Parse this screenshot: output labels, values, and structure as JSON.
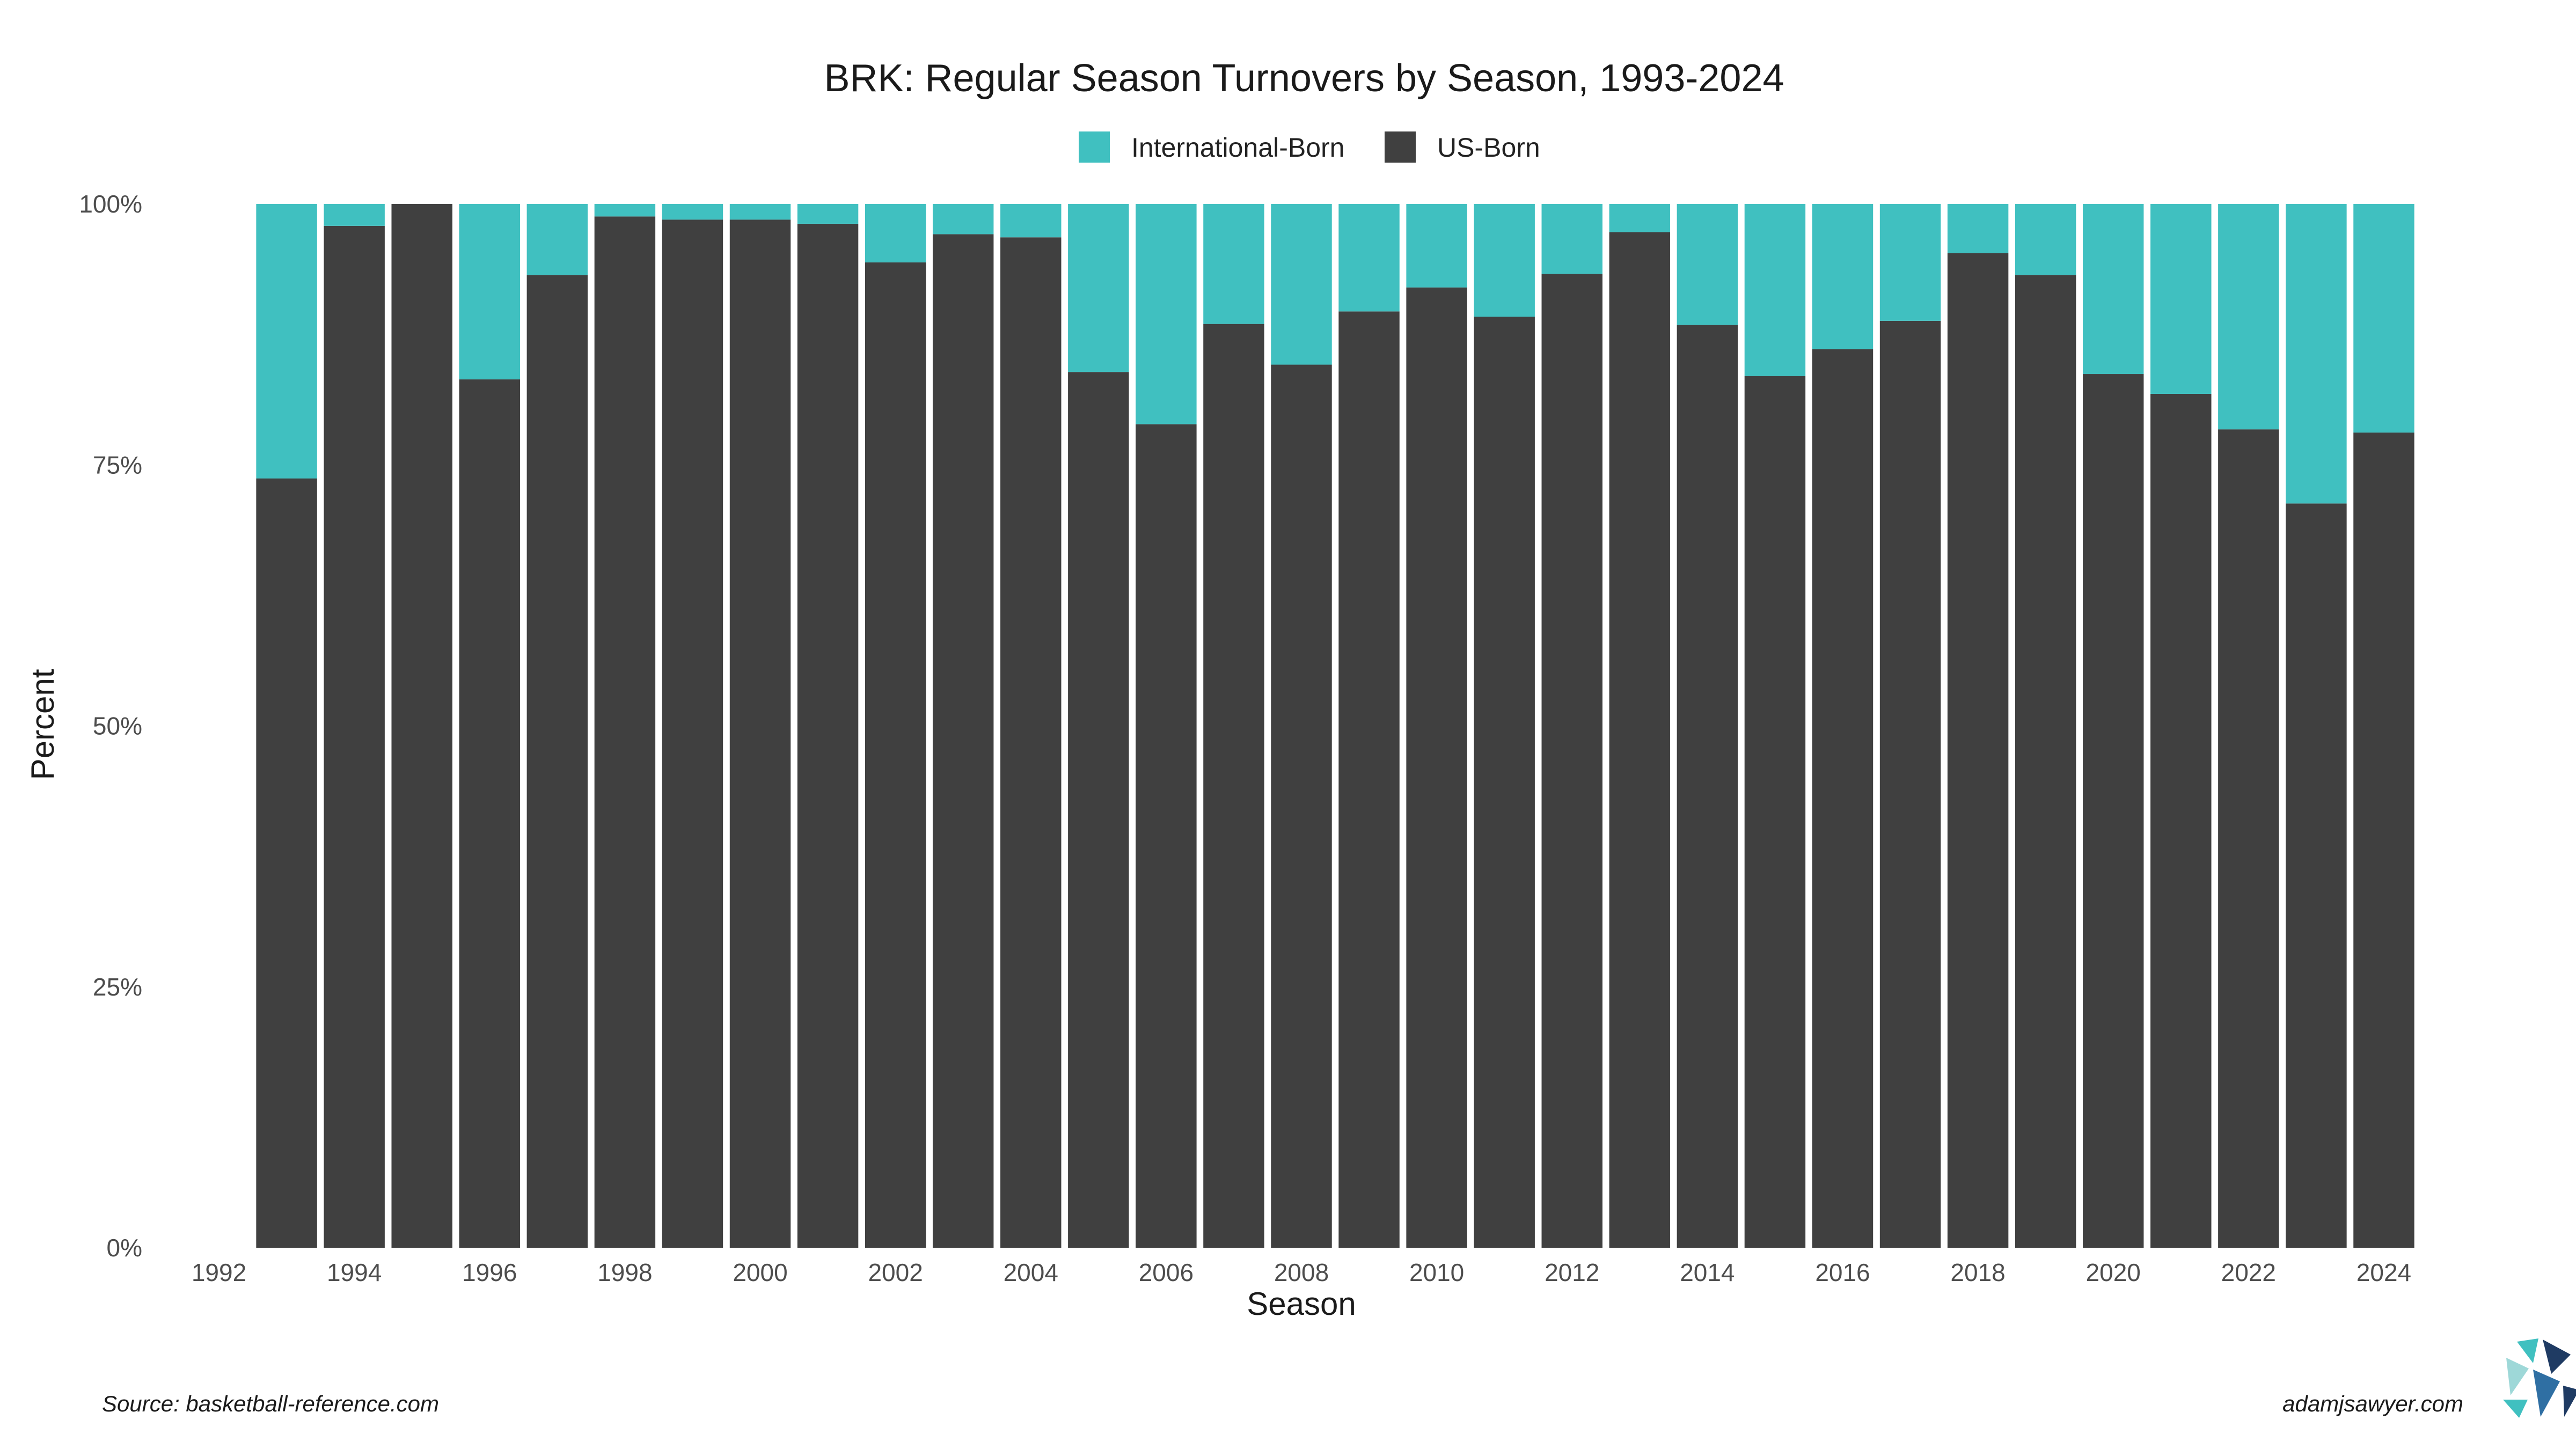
{
  "chart_data": {
    "type": "bar",
    "stacked": true,
    "title": "BRK: Regular Season Turnovers by Season, 1993-2024",
    "xlabel": "Season",
    "ylabel": "Percent",
    "ylim": [
      0,
      1
    ],
    "x_range": [
      1992,
      2024
    ],
    "x_ticks": [
      1992,
      1994,
      1996,
      1998,
      2000,
      2002,
      2004,
      2006,
      2008,
      2010,
      2012,
      2014,
      2016,
      2018,
      2020,
      2022,
      2024
    ],
    "y_ticks": [
      {
        "value": 0,
        "label": "0%"
      },
      {
        "value": 0.25,
        "label": "25%"
      },
      {
        "value": 0.5,
        "label": "50%"
      },
      {
        "value": 0.75,
        "label": "75%"
      },
      {
        "value": 1,
        "label": "100%"
      }
    ],
    "grid": false,
    "legend_position": "top",
    "categories": [
      1993,
      1994,
      1995,
      1996,
      1997,
      1998,
      1999,
      2000,
      2001,
      2002,
      2003,
      2004,
      2005,
      2006,
      2007,
      2008,
      2009,
      2010,
      2011,
      2012,
      2013,
      2014,
      2015,
      2016,
      2017,
      2018,
      2019,
      2020,
      2021,
      2022,
      2023,
      2024
    ],
    "series": [
      {
        "name": "US-Born",
        "color": "#404040",
        "values": [
          0.737,
          0.979,
          1.0,
          0.832,
          0.932,
          0.988,
          0.985,
          0.985,
          0.981,
          0.944,
          0.971,
          0.968,
          0.839,
          0.789,
          0.885,
          0.846,
          0.897,
          0.92,
          0.892,
          0.933,
          0.973,
          0.884,
          0.835,
          0.861,
          0.888,
          0.953,
          0.932,
          0.837,
          0.818,
          0.784,
          0.713,
          0.781
        ]
      },
      {
        "name": "International-Born",
        "color": "#40C0C0",
        "values": [
          0.263,
          0.021,
          0.0,
          0.168,
          0.068,
          0.012,
          0.015,
          0.015,
          0.019,
          0.056,
          0.029,
          0.032,
          0.161,
          0.211,
          0.115,
          0.154,
          0.103,
          0.08,
          0.108,
          0.067,
          0.027,
          0.116,
          0.165,
          0.139,
          0.112,
          0.047,
          0.068,
          0.163,
          0.182,
          0.216,
          0.287,
          0.219
        ]
      }
    ],
    "legend": [
      {
        "name": "International-Born",
        "color": "#40C0C0"
      },
      {
        "name": "US-Born",
        "color": "#404040"
      }
    ]
  },
  "footer": {
    "source": "Source: basketball-reference.com",
    "credit": "adamjsawyer.com"
  }
}
